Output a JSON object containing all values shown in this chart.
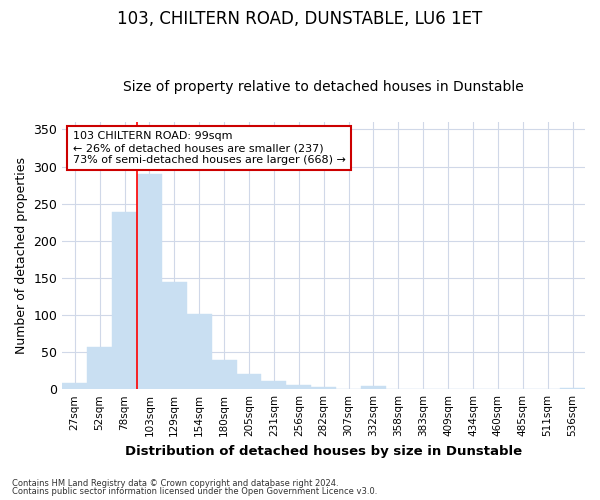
{
  "title": "103, CHILTERN ROAD, DUNSTABLE, LU6 1ET",
  "subtitle": "Size of property relative to detached houses in Dunstable",
  "xlabel": "Distribution of detached houses by size in Dunstable",
  "ylabel": "Number of detached properties",
  "footnote1": "Contains HM Land Registry data © Crown copyright and database right 2024.",
  "footnote2": "Contains public sector information licensed under the Open Government Licence v3.0.",
  "bin_labels": [
    "27sqm",
    "52sqm",
    "78sqm",
    "103sqm",
    "129sqm",
    "154sqm",
    "180sqm",
    "205sqm",
    "231sqm",
    "256sqm",
    "282sqm",
    "307sqm",
    "332sqm",
    "358sqm",
    "383sqm",
    "409sqm",
    "434sqm",
    "460sqm",
    "485sqm",
    "511sqm",
    "536sqm"
  ],
  "bar_values": [
    8,
    57,
    239,
    290,
    145,
    101,
    40,
    20,
    11,
    5,
    3,
    0,
    4,
    0,
    0,
    0,
    0,
    0,
    0,
    0,
    2
  ],
  "bar_color": "#c9dff2",
  "bar_edge_color": "#c9dff2",
  "red_line_index": 3,
  "annotation_line1": "103 CHILTERN ROAD: 99sqm",
  "annotation_line2": "← 26% of detached houses are smaller (237)",
  "annotation_line3": "73% of semi-detached houses are larger (668) →",
  "ylim": [
    0,
    360
  ],
  "yticks": [
    0,
    50,
    100,
    150,
    200,
    250,
    300,
    350
  ],
  "background_color": "#ffffff",
  "plot_bg_color": "#ffffff",
  "grid_color": "#d0d8e8",
  "title_fontsize": 12,
  "subtitle_fontsize": 10,
  "annotation_box_color": "#ffffff",
  "annotation_box_edge": "#cc0000"
}
